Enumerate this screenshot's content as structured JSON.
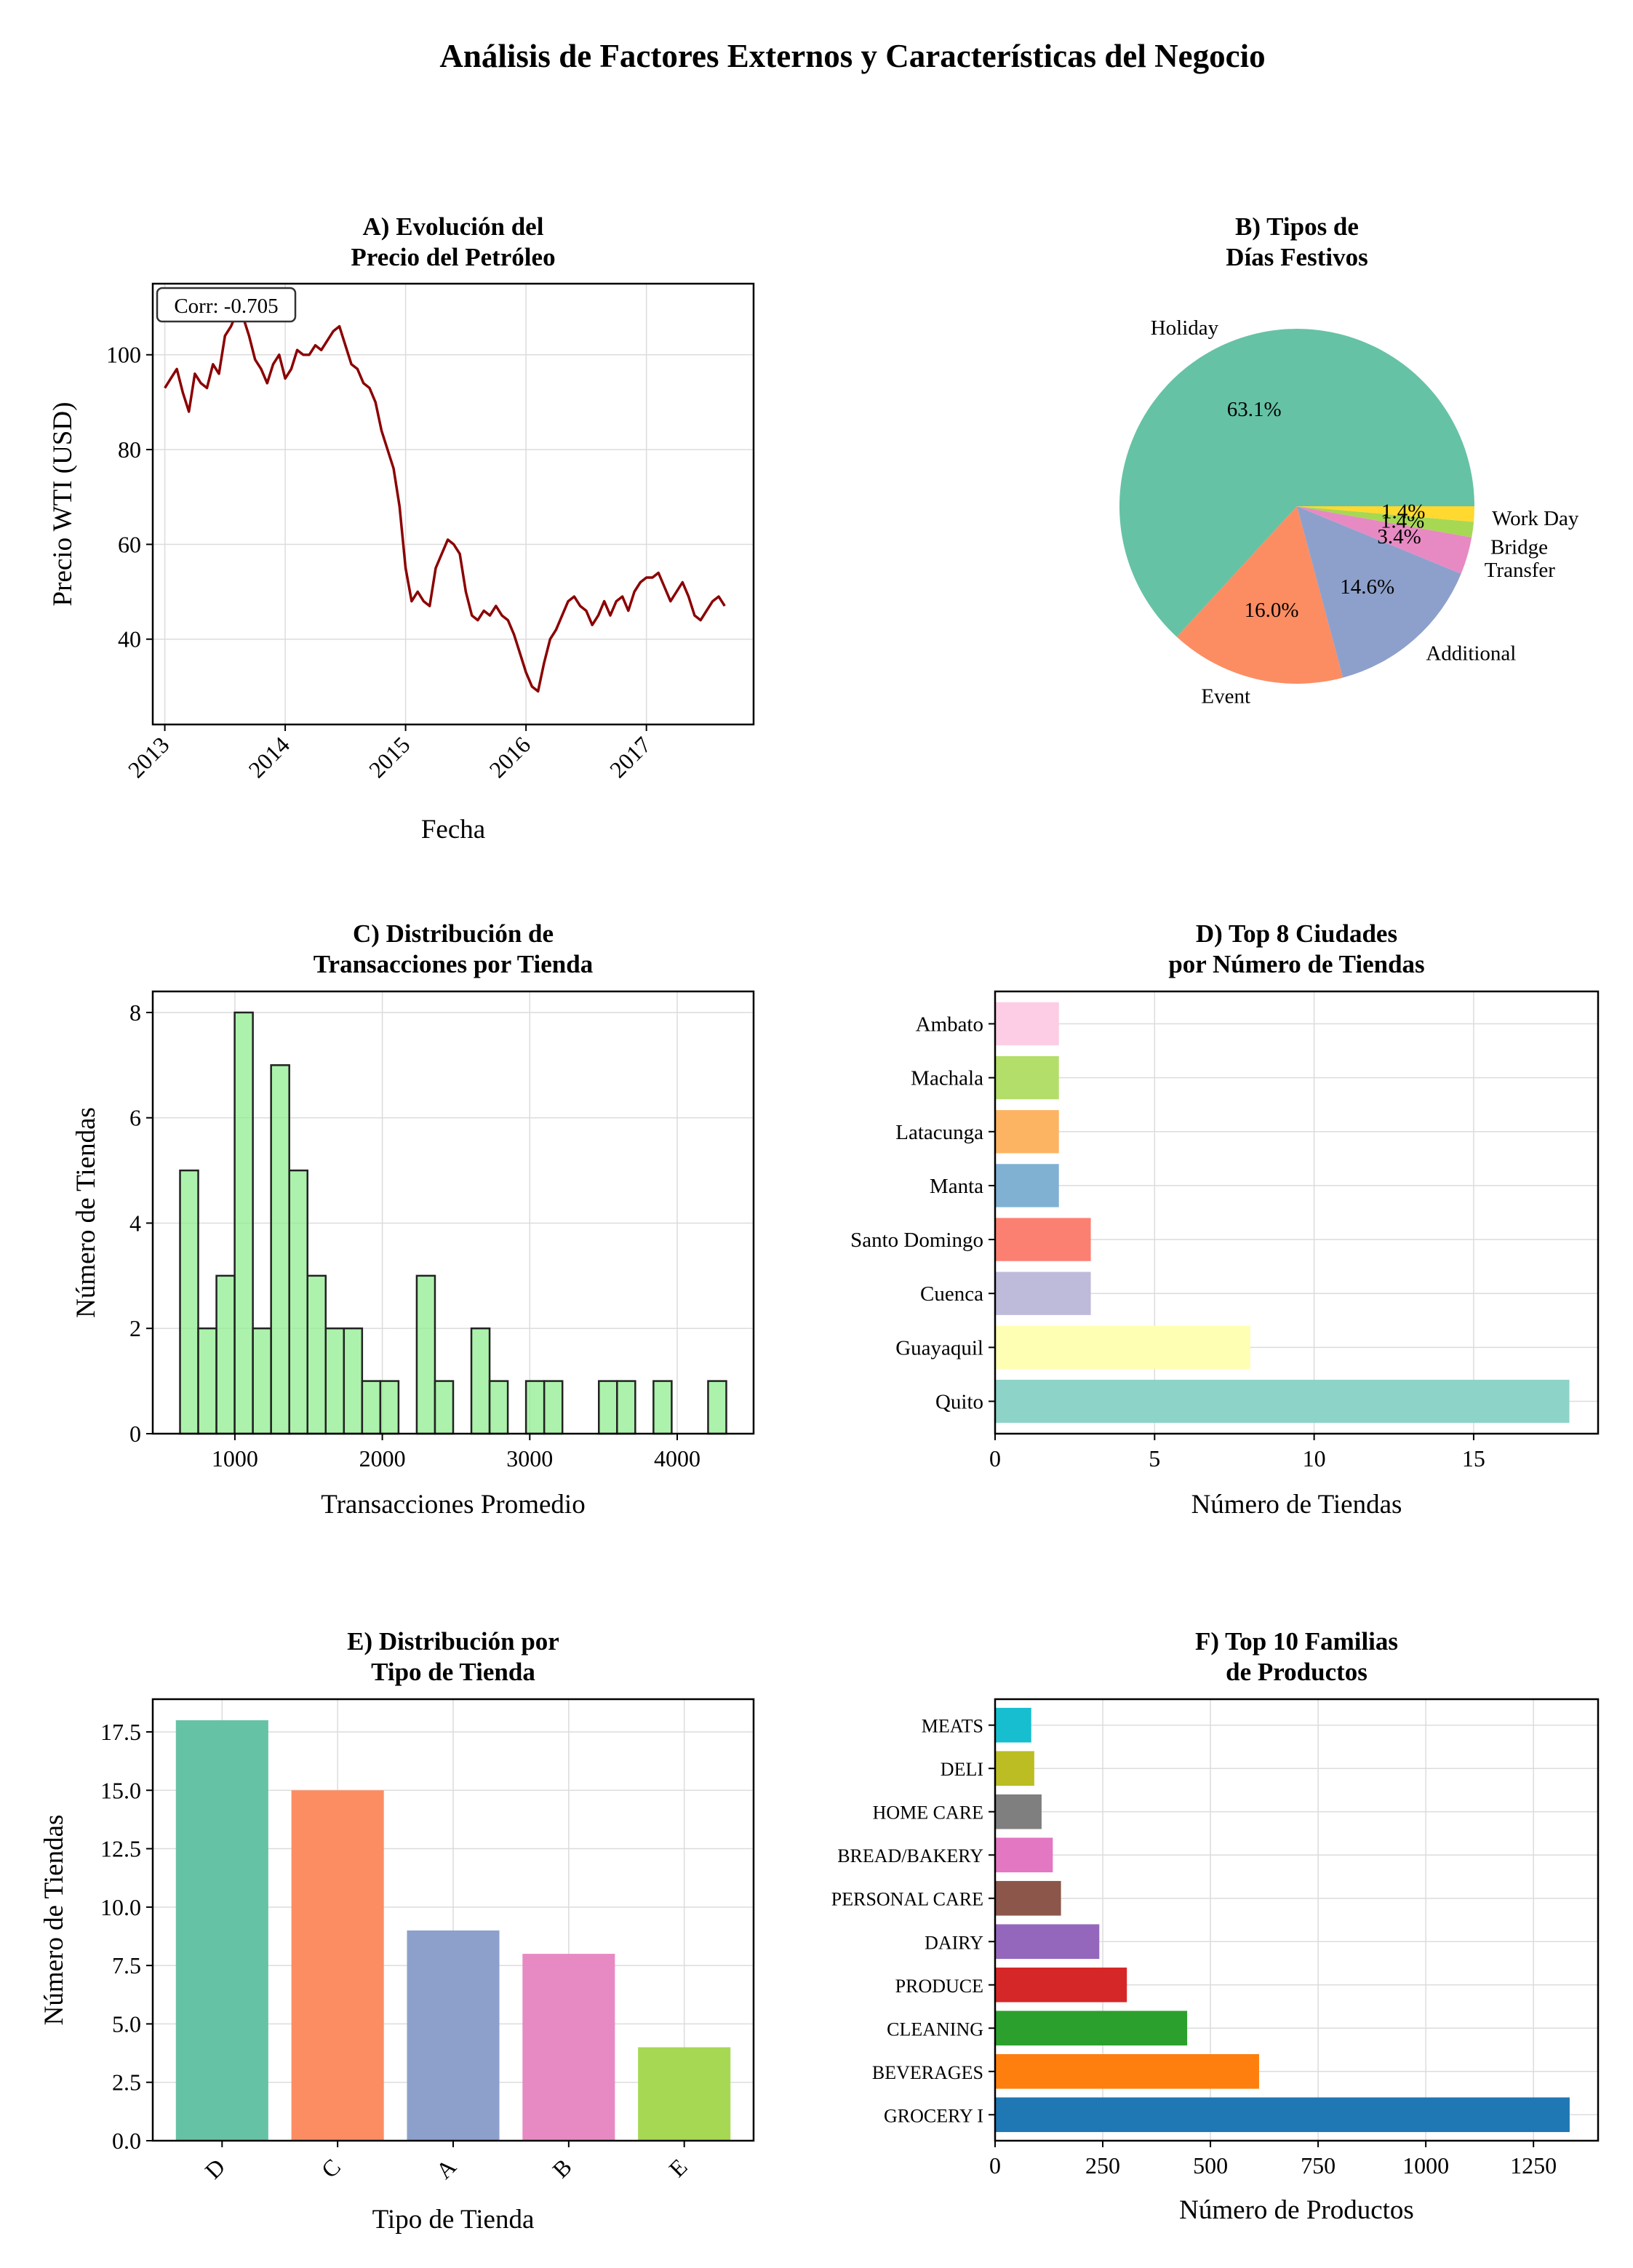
{
  "figure": {
    "title": "Análisis de Factores Externos y Características del Negocio"
  },
  "chart_data": [
    {
      "id": "A",
      "type": "line",
      "title": [
        "A) Evolución del",
        "Precio del Petróleo"
      ],
      "xlabel": "Fecha",
      "ylabel": "Precio WTI (USD)",
      "annotation": "Corr: -0.705",
      "x_ticks": [
        "2013",
        "2014",
        "2015",
        "2016",
        "2017"
      ],
      "y_ticks": [
        40,
        60,
        80,
        100
      ],
      "xlim": [
        2012.9,
        2017.89
      ],
      "ylim": [
        22,
        115
      ],
      "grid": true,
      "color": "#8B0000",
      "series": [
        {
          "x": [
            2013.0,
            2013.05,
            2013.1,
            2013.15,
            2013.2,
            2013.25,
            2013.3,
            2013.35,
            2013.4,
            2013.45,
            2013.5,
            2013.55,
            2013.6,
            2013.65,
            2013.7,
            2013.75,
            2013.8,
            2013.85,
            2013.9,
            2013.95,
            2014.0,
            2014.05,
            2014.1,
            2014.15,
            2014.2,
            2014.25,
            2014.3,
            2014.35,
            2014.4,
            2014.45,
            2014.5,
            2014.55,
            2014.6,
            2014.65,
            2014.7,
            2014.75,
            2014.8,
            2014.85,
            2014.9,
            2014.95,
            2015.0,
            2015.05,
            2015.1,
            2015.15,
            2015.2,
            2015.25,
            2015.3,
            2015.35,
            2015.4,
            2015.45,
            2015.5,
            2015.55,
            2015.6,
            2015.65,
            2015.7,
            2015.75,
            2015.8,
            2015.85,
            2015.9,
            2015.95,
            2016.0,
            2016.05,
            2016.1,
            2016.15,
            2016.2,
            2016.25,
            2016.3,
            2016.35,
            2016.4,
            2016.45,
            2016.5,
            2016.55,
            2016.6,
            2016.65,
            2016.7,
            2016.75,
            2016.8,
            2016.85,
            2016.9,
            2016.95,
            2017.0,
            2017.05,
            2017.1,
            2017.15,
            2017.2,
            2017.25,
            2017.3,
            2017.35,
            2017.4,
            2017.45,
            2017.5,
            2017.55,
            2017.6,
            2017.65
          ],
          "y": [
            93,
            95,
            97,
            92,
            88,
            96,
            94,
            93,
            98,
            96,
            104,
            106,
            109,
            108,
            104,
            99,
            97,
            94,
            98,
            100,
            95,
            97,
            101,
            100,
            100,
            102,
            101,
            103,
            105,
            106,
            102,
            98,
            97,
            94,
            93,
            90,
            84,
            80,
            76,
            68,
            55,
            48,
            50,
            48,
            47,
            55,
            58,
            61,
            60,
            58,
            50,
            45,
            44,
            46,
            45,
            47,
            45,
            44,
            41,
            37,
            33,
            30,
            29,
            35,
            40,
            42,
            45,
            48,
            49,
            47,
            46,
            43,
            45,
            48,
            45,
            48,
            49,
            46,
            50,
            52,
            53,
            53,
            54,
            51,
            48,
            50,
            52,
            49,
            45,
            44,
            46,
            48,
            49,
            47
          ]
        }
      ]
    },
    {
      "id": "B",
      "type": "pie",
      "title": [
        "B) Tipos de",
        "Días Festivos"
      ],
      "labels": [
        "Holiday",
        "Event",
        "Additional",
        "Transfer",
        "Bridge",
        "Work Day"
      ],
      "values": [
        63.1,
        16.0,
        14.6,
        3.4,
        1.4,
        1.4
      ],
      "pct_labels": [
        "63.1%",
        "16.0%",
        "14.6%",
        "3.4%",
        "1.4%",
        "1.4%"
      ],
      "colors": [
        "#66c2a5",
        "#fc8d62",
        "#8da0cb",
        "#e78ac3",
        "#a6d854",
        "#ffd92f"
      ]
    },
    {
      "id": "C",
      "type": "bar",
      "subtype": "histogram",
      "title": [
        "C) Distribución de",
        "Transacciones por Tienda"
      ],
      "xlabel": "Transacciones Promedio",
      "ylabel": "Número de Tiendas",
      "bin_start": 628,
      "bin_width": 123.5,
      "values": [
        5,
        2,
        3,
        8,
        2,
        7,
        5,
        3,
        2,
        2,
        1,
        1,
        0,
        3,
        1,
        0,
        2,
        1,
        0,
        1,
        1,
        0,
        0,
        1,
        1,
        0,
        1,
        0,
        0,
        1
      ],
      "x_ticks": [
        1000,
        2000,
        3000,
        4000
      ],
      "y_ticks": [
        0,
        2,
        4,
        6,
        8
      ],
      "xlim": [
        443,
        4518
      ],
      "ylim": [
        0,
        8.4
      ],
      "color": "#90ee90"
    },
    {
      "id": "D",
      "type": "bar",
      "orientation": "horizontal",
      "title": [
        "D) Top 8 Ciudades",
        "por Número de Tiendas"
      ],
      "xlabel": "Número de Tiendas",
      "categories": [
        "Quito",
        "Guayaquil",
        "Cuenca",
        "Santo Domingo",
        "Manta",
        "Latacunga",
        "Machala",
        "Ambato"
      ],
      "values": [
        18,
        8,
        3,
        3,
        2,
        2,
        2,
        2
      ],
      "colors": [
        "#8dd3c7",
        "#ffffb3",
        "#bebada",
        "#fb8072",
        "#80b1d3",
        "#fdb462",
        "#b3de69",
        "#fccde5"
      ],
      "x_ticks": [
        0,
        5,
        10,
        15
      ],
      "xlim": [
        0,
        18.9
      ]
    },
    {
      "id": "E",
      "type": "bar",
      "title": [
        "E) Distribución por",
        "Tipo de Tienda"
      ],
      "xlabel": "Tipo de Tienda",
      "ylabel": "Número de Tiendas",
      "categories": [
        "D",
        "C",
        "A",
        "B",
        "E"
      ],
      "values": [
        18,
        15,
        9,
        8,
        4
      ],
      "colors": [
        "#66c2a5",
        "#fc8d62",
        "#8da0cb",
        "#e78ac3",
        "#a6d854"
      ],
      "y_ticks": [
        0.0,
        2.5,
        5.0,
        7.5,
        10.0,
        12.5,
        15.0,
        17.5
      ],
      "y_tick_labels": [
        "0.0",
        "2.5",
        "5.0",
        "7.5",
        "10.0",
        "12.5",
        "15.0",
        "17.5"
      ],
      "ylim": [
        0,
        18.9
      ]
    },
    {
      "id": "F",
      "type": "bar",
      "orientation": "horizontal",
      "title": [
        "F) Top 10 Familias",
        "de Productos"
      ],
      "xlabel": "Número de Productos",
      "categories": [
        "GROCERY I",
        "BEVERAGES",
        "CLEANING",
        "PRODUCE",
        "DAIRY",
        "PERSONAL CARE",
        "BREAD/BAKERY",
        "HOME CARE",
        "DELI",
        "MEATS"
      ],
      "values": [
        1334,
        613,
        446,
        306,
        242,
        153,
        134,
        108,
        91,
        84
      ],
      "colors": [
        "#1f77b4",
        "#ff7f0e",
        "#2ca02c",
        "#d62728",
        "#9467bd",
        "#8c564b",
        "#e377c2",
        "#7f7f7f",
        "#bcbd22",
        "#17becf"
      ],
      "x_ticks": [
        0,
        250,
        500,
        750,
        1000,
        1250
      ],
      "xlim": [
        0,
        1400
      ]
    }
  ]
}
